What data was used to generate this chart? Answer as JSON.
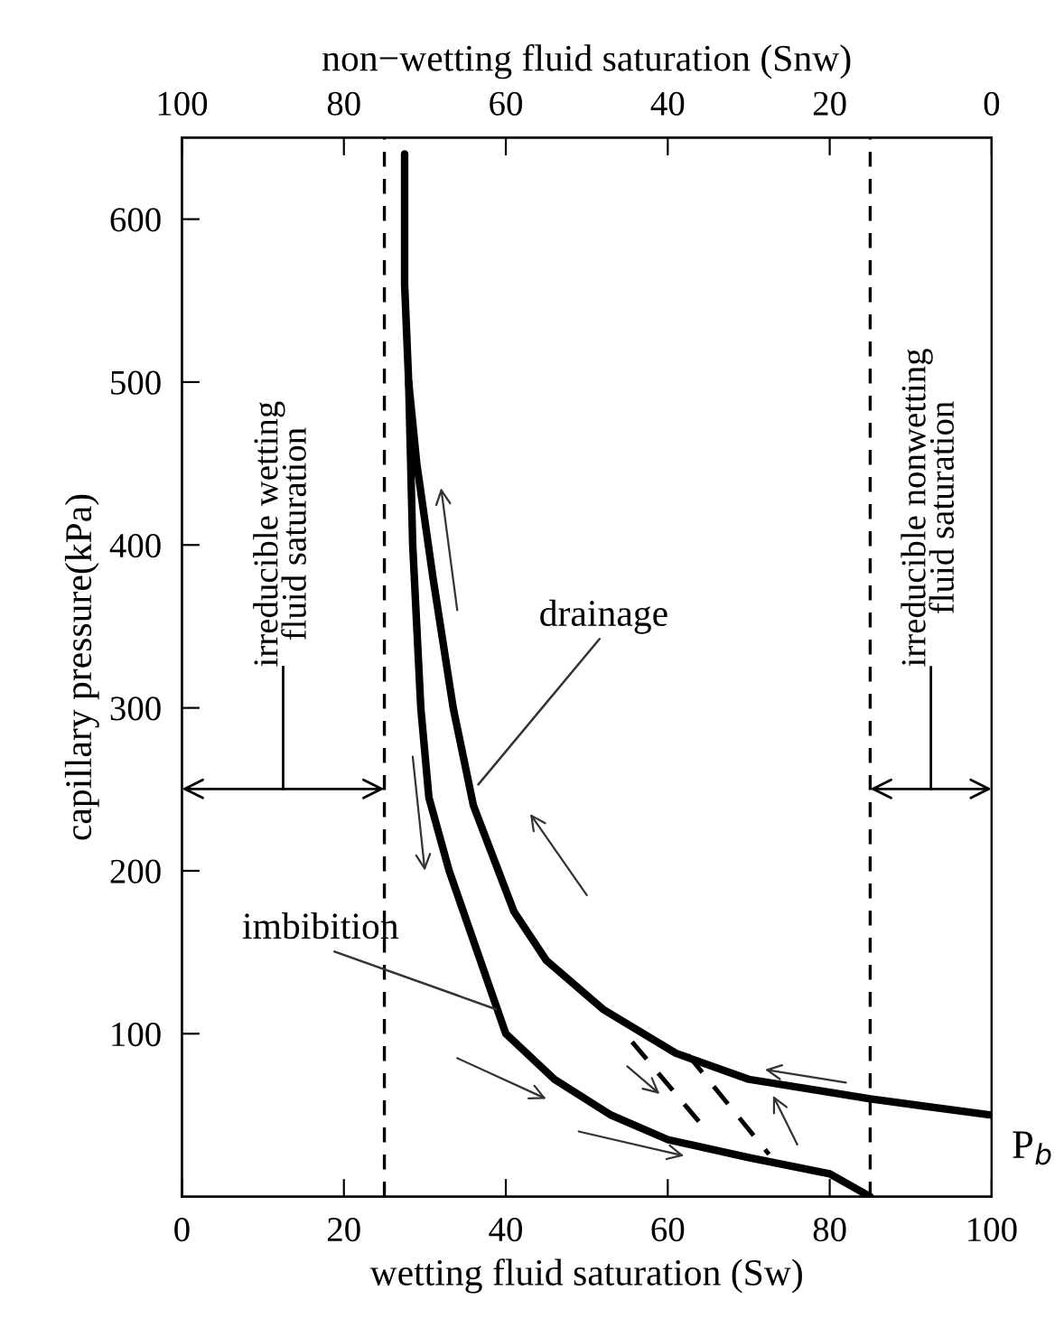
{
  "chart_data": {
    "type": "line",
    "xlabel": "wetting fluid saturation (Sw)",
    "ylabel": "capillary pressure(kPa)",
    "x2label": "non−wetting fluid saturation (Snw)",
    "xlim": [
      0,
      100
    ],
    "xticks": [
      0,
      20,
      40,
      60,
      80,
      100
    ],
    "x2lim": [
      100,
      0
    ],
    "x2ticks": [
      100,
      80,
      60,
      40,
      20,
      0
    ],
    "ylim": [
      0,
      650
    ],
    "yticks": [
      100,
      200,
      300,
      400,
      500,
      600
    ],
    "tick_labels": "xy",
    "grid": false,
    "marker": "none",
    "series": [
      {
        "color": "#000000",
        "line_style": "solid",
        "x": [
          100,
          85,
          80,
          70,
          61,
          52,
          45,
          41,
          36,
          33.5,
          31,
          29,
          28,
          27.5,
          27.5
        ],
        "values": [
          50,
          60,
          64,
          72,
          88,
          115,
          145,
          175,
          240,
          300,
          380,
          450,
          500,
          560,
          640
        ]
      },
      {
        "color": "#000000",
        "line_style": "solid",
        "x": [
          28,
          28.5,
          29.5,
          30.5,
          33,
          36.5,
          40,
          46,
          53,
          60,
          70,
          80,
          85
        ],
        "values": [
          500,
          400,
          300,
          245,
          200,
          150,
          100,
          72,
          50,
          35,
          24,
          14,
          0
        ]
      },
      {
        "color": "#000000",
        "line_style": "dashed",
        "x": [
          55.6,
          65.2
        ],
        "values": [
          95,
          38
        ]
      },
      {
        "color": "#000000",
        "line_style": "dashed",
        "x": [
          62.5,
          72.5
        ],
        "values": [
          87,
          26
        ]
      }
    ],
    "ref_lines": [
      {
        "axis": "x",
        "value": 25,
        "label": "irreducible wetting\nfluid saturation",
        "color": "#000000",
        "line_style": "dashed"
      },
      {
        "axis": "x",
        "value": 85,
        "label": "irreducible nonwetting\nfluid saturation",
        "color": "#000000",
        "line_style": "dashed"
      }
    ],
    "annotations": [
      {
        "text": "drainage",
        "x": 36.6,
        "y": 253
      },
      {
        "text": "imbibition",
        "x": 38.8,
        "y": 115
      },
      {
        "text": "P$_{b}$",
        "x": 100,
        "y": 50
      }
    ]
  }
}
